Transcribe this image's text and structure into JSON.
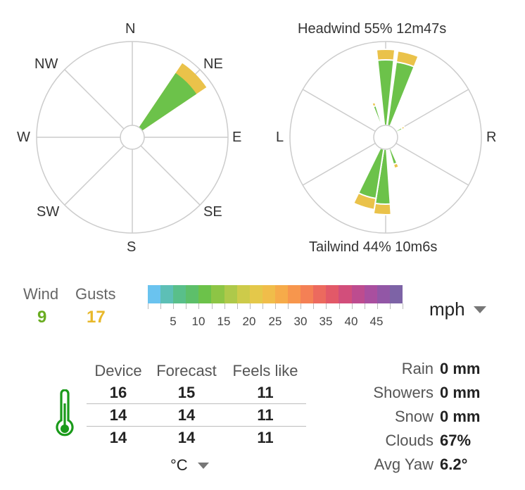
{
  "compass_rose": {
    "labels": [
      "N",
      "NE",
      "E",
      "SE",
      "S",
      "SW",
      "W",
      "NW"
    ],
    "direction_deg": 45,
    "wind_color": "#6cc24a",
    "gust_color": "#eac24a"
  },
  "relative_rose": {
    "headwind_text": "Headwind 55% 12m47s",
    "tailwind_text": "Tailwind 44% 10m6s",
    "left_label": "L",
    "right_label": "R"
  },
  "wind": {
    "wind_label": "Wind",
    "wind_value": "9",
    "wind_color": "#6aad22",
    "gusts_label": "Gusts",
    "gusts_value": "17",
    "gusts_color": "#e8b82a"
  },
  "scale": {
    "ticks": [
      "5",
      "10",
      "15",
      "20",
      "25",
      "30",
      "35",
      "40",
      "45"
    ],
    "colors": [
      "#6ac3ef",
      "#5dbfb6",
      "#59bf8a",
      "#5dbf6a",
      "#6cc24a",
      "#8dc545",
      "#aec94a",
      "#cdcb4a",
      "#e4c84a",
      "#f0bd4a",
      "#f6ab4a",
      "#f7964d",
      "#f48055",
      "#ec6a5e",
      "#e25968",
      "#d24e7b",
      "#bd4c8f",
      "#a94f9f",
      "#9257a6",
      "#7d63a6"
    ],
    "unit": "mph"
  },
  "temperature": {
    "headers": [
      "Device",
      "Forecast",
      "Feels like"
    ],
    "rows": [
      [
        "16",
        "15",
        "11"
      ],
      [
        "14",
        "14",
        "11"
      ],
      [
        "14",
        "14",
        "11"
      ]
    ],
    "unit": "°C",
    "icon": "thermometer-icon",
    "icon_color": "#1a9a1a"
  },
  "stats": [
    {
      "label": "Rain",
      "value": "0 mm"
    },
    {
      "label": "Showers",
      "value": "0 mm"
    },
    {
      "label": "Snow",
      "value": "0 mm"
    },
    {
      "label": "Clouds",
      "value": "67%"
    },
    {
      "label": "Avg Yaw",
      "value": "6.2°"
    }
  ]
}
